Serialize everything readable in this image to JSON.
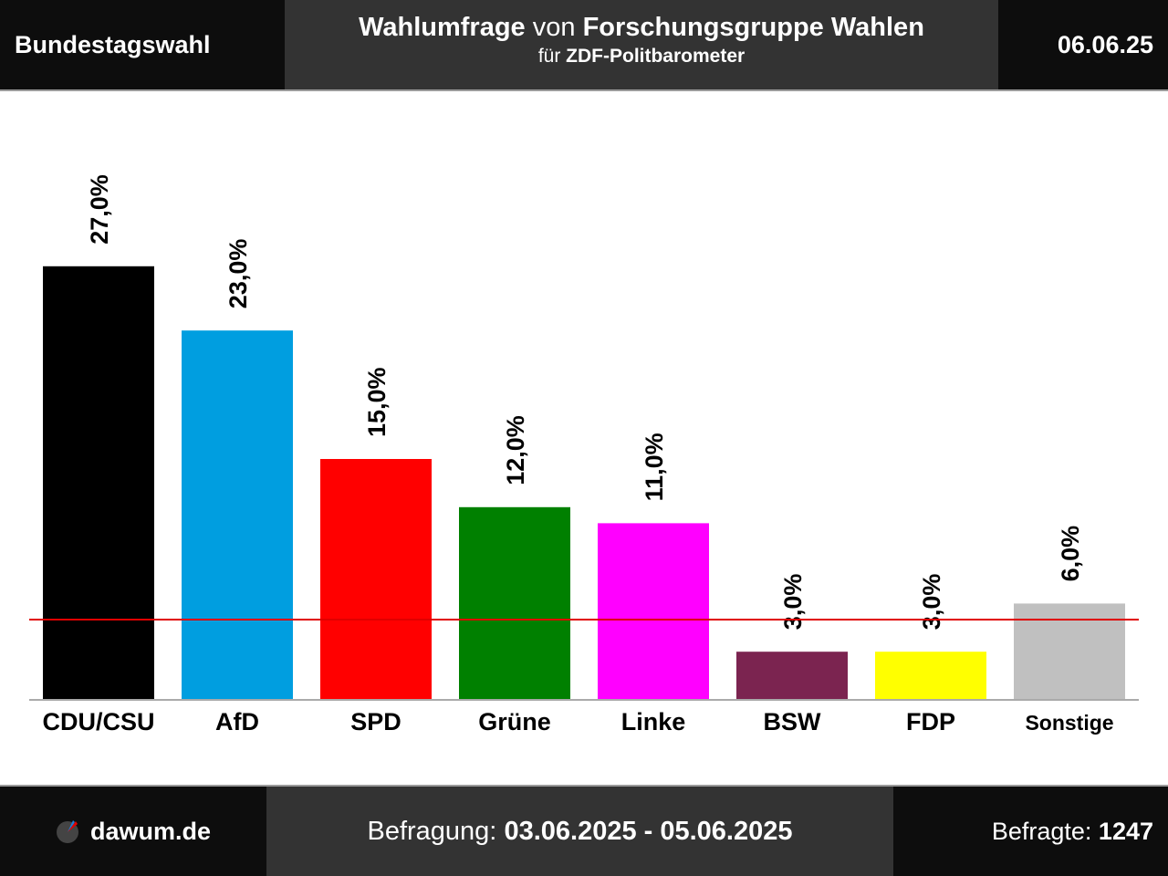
{
  "header": {
    "left": "Bundestagswahl",
    "title_part1": "Wahlumfrage",
    "title_part2": "von",
    "title_part3": "Forschungsgruppe Wahlen",
    "subtitle_part1": "für",
    "subtitle_part2": "ZDF-Politbarometer",
    "date": "06.06.25"
  },
  "footer": {
    "site": "dawum.de",
    "period_label": "Befragung:",
    "period_value": "03.06.2025 - 05.06.2025",
    "respondents_label": "Befragte:",
    "respondents_value": "1247"
  },
  "chart_data": {
    "type": "bar",
    "categories": [
      "CDU/CSU",
      "AfD",
      "SPD",
      "Grüne",
      "Linke",
      "BSW",
      "FDP",
      "Sonstige"
    ],
    "values": [
      27.0,
      23.0,
      15.0,
      12.0,
      11.0,
      3.0,
      3.0,
      6.0
    ],
    "value_labels": [
      "27,0%",
      "23,0%",
      "15,0%",
      "12,0%",
      "11,0%",
      "3,0%",
      "3,0%",
      "6,0%"
    ],
    "colors": [
      "#000000",
      "#009ee0",
      "#ff0000",
      "#008000",
      "#ff00ff",
      "#7b2450",
      "#ffff00",
      "#c0c0c0"
    ],
    "threshold": 5.0,
    "threshold_color": "#e00000",
    "ylim": [
      0,
      30
    ],
    "grid": false,
    "title": "",
    "xlabel": "",
    "ylabel": ""
  }
}
